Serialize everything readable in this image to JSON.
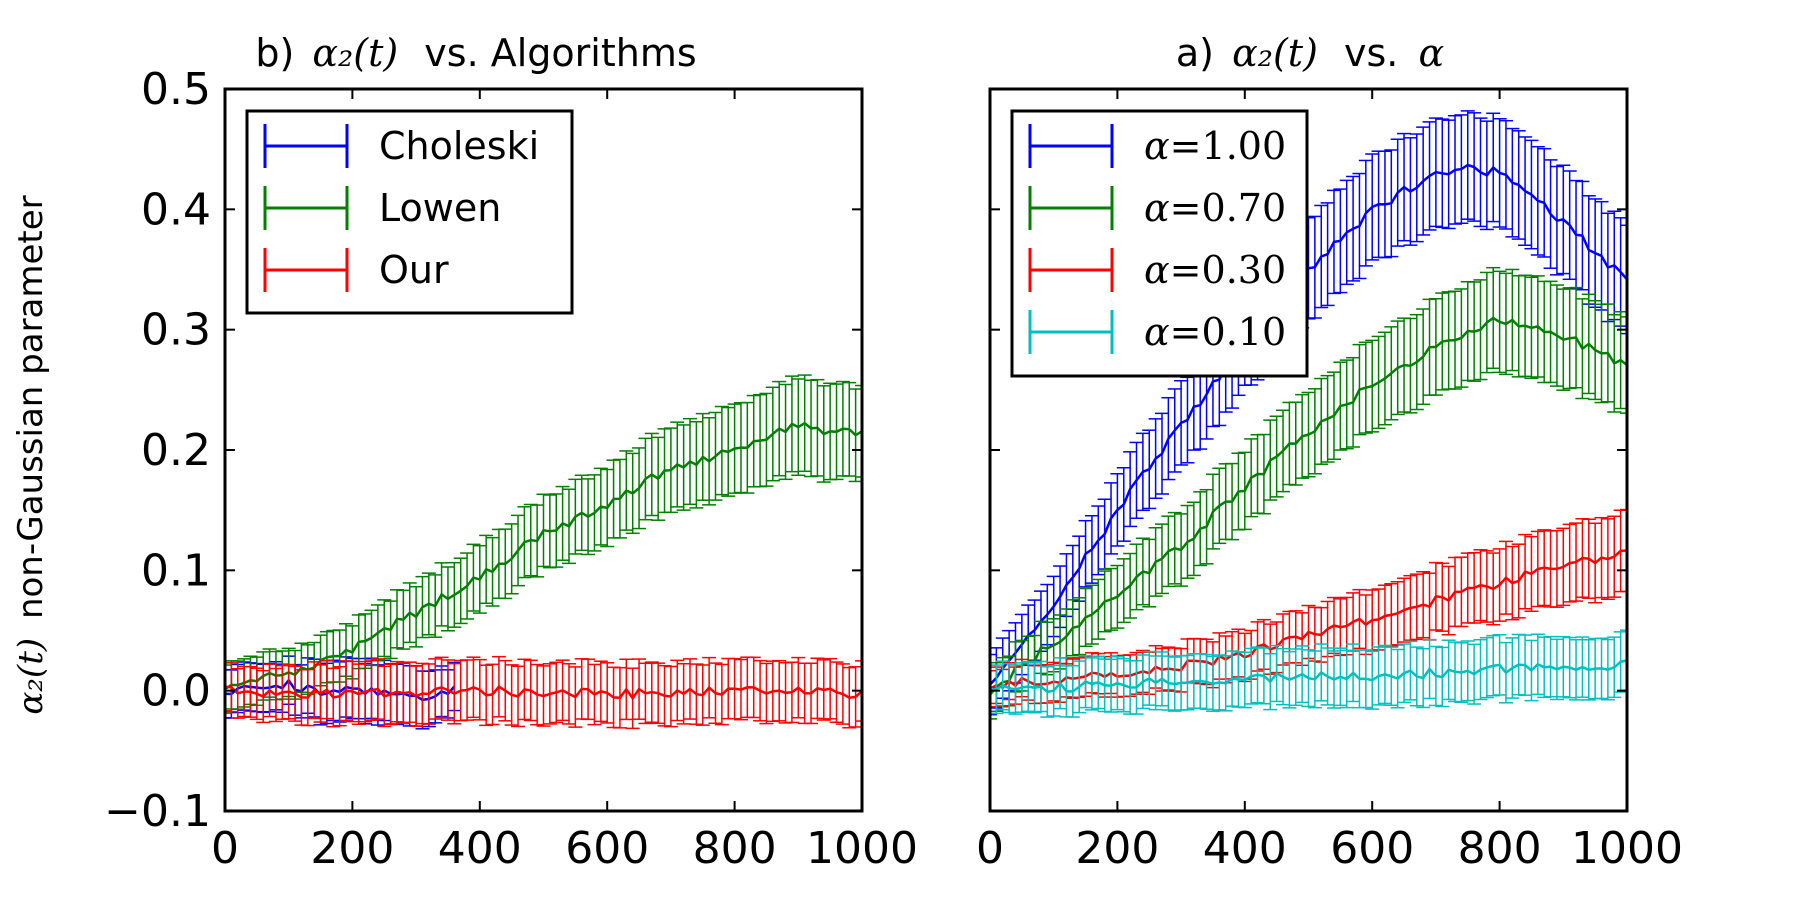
{
  "chart_data": [
    {
      "type": "line",
      "panel": "left",
      "title_prefix": "b)",
      "title_math": "α₂(t)",
      "title_suffix": "vs. Algorithms",
      "ylabel_math": "α₂(t)",
      "ylabel_text": "non-Gaussian parameter",
      "xlim": [
        0,
        1000
      ],
      "ylim": [
        -0.1,
        0.5
      ],
      "xticks": [
        "0",
        "200",
        "400",
        "600",
        "800",
        "1000"
      ],
      "yticks": [
        "−0.1",
        "0.0",
        "0.1",
        "0.2",
        "0.3",
        "0.4",
        "0.5"
      ],
      "legend_position": "top-left",
      "series": [
        {
          "name": "Choleski",
          "color": "#0000ff",
          "x_max": 360,
          "x": [
            0,
            50,
            100,
            150,
            200,
            250,
            300,
            350
          ],
          "y": [
            0.0,
            0.005,
            0.005,
            0.0,
            0.0,
            0.0,
            -0.005,
            0.0
          ],
          "err": [
            0.02,
            0.02,
            0.02,
            0.025,
            0.025,
            0.025,
            0.025,
            0.02
          ]
        },
        {
          "name": "Lowen",
          "color": "#007f00",
          "x_max": 1000,
          "x": [
            0,
            100,
            200,
            300,
            400,
            500,
            600,
            700,
            800,
            900,
            950,
            1000
          ],
          "y": [
            0.005,
            0.015,
            0.035,
            0.065,
            0.095,
            0.13,
            0.155,
            0.185,
            0.2,
            0.22,
            0.215,
            0.215
          ],
          "err": [
            0.02,
            0.02,
            0.022,
            0.025,
            0.028,
            0.03,
            0.032,
            0.035,
            0.037,
            0.04,
            0.04,
            0.038
          ]
        },
        {
          "name": "Our",
          "color": "#ff0000",
          "x_max": 1000,
          "x": [
            0,
            200,
            400,
            600,
            800,
            1000
          ],
          "y": [
            0.0,
            -0.003,
            0.0,
            -0.003,
            0.0,
            -0.003
          ],
          "err": [
            0.02,
            0.025,
            0.025,
            0.025,
            0.025,
            0.025
          ]
        }
      ]
    },
    {
      "type": "line",
      "panel": "right",
      "title_prefix": "a)",
      "title_math": "α₂(t)",
      "title_suffix": "vs.",
      "title_tail_math": "α",
      "xlim": [
        0,
        1000
      ],
      "ylim": [
        -0.1,
        0.5
      ],
      "xticks": [
        "0",
        "200",
        "400",
        "600",
        "800",
        "1000"
      ],
      "legend_position": "top-left",
      "series": [
        {
          "name": "α=1.00",
          "legend_symbol": "α",
          "legend_value": "=1.00",
          "color": "#0000ff",
          "x_max": 1000,
          "x": [
            0,
            100,
            200,
            300,
            400,
            500,
            600,
            700,
            750,
            800,
            900,
            1000
          ],
          "y": [
            0.005,
            0.07,
            0.15,
            0.22,
            0.29,
            0.35,
            0.4,
            0.43,
            0.435,
            0.43,
            0.39,
            0.34
          ],
          "err": [
            0.025,
            0.025,
            0.03,
            0.035,
            0.04,
            0.042,
            0.044,
            0.045,
            0.045,
            0.045,
            0.045,
            0.045
          ]
        },
        {
          "name": "α=0.70",
          "legend_symbol": "α",
          "legend_value": "=0.70",
          "color": "#007f00",
          "x_max": 1000,
          "x": [
            0,
            100,
            200,
            300,
            400,
            500,
            600,
            700,
            800,
            900,
            1000
          ],
          "y": [
            0.0,
            0.04,
            0.08,
            0.12,
            0.17,
            0.215,
            0.255,
            0.285,
            0.31,
            0.295,
            0.27
          ],
          "err": [
            0.02,
            0.022,
            0.026,
            0.03,
            0.032,
            0.035,
            0.038,
            0.04,
            0.042,
            0.042,
            0.04
          ]
        },
        {
          "name": "α=0.30",
          "legend_symbol": "α",
          "legend_value": "=0.30",
          "color": "#ff0000",
          "x_max": 1000,
          "x": [
            0,
            100,
            200,
            300,
            400,
            500,
            600,
            700,
            800,
            900,
            1000
          ],
          "y": [
            0.005,
            0.01,
            0.015,
            0.02,
            0.03,
            0.045,
            0.06,
            0.075,
            0.09,
            0.105,
            0.115
          ],
          "err": [
            0.015,
            0.016,
            0.017,
            0.018,
            0.02,
            0.022,
            0.025,
            0.028,
            0.03,
            0.032,
            0.034
          ]
        },
        {
          "name": "α=0.10",
          "legend_symbol": "α",
          "legend_value": "=0.10",
          "color": "#00bfbf",
          "x_max": 1000,
          "x": [
            0,
            200,
            400,
            600,
            800,
            1000
          ],
          "y": [
            0.0,
            0.005,
            0.01,
            0.012,
            0.018,
            0.022
          ],
          "err": [
            0.02,
            0.022,
            0.023,
            0.024,
            0.025,
            0.025
          ]
        }
      ]
    }
  ]
}
